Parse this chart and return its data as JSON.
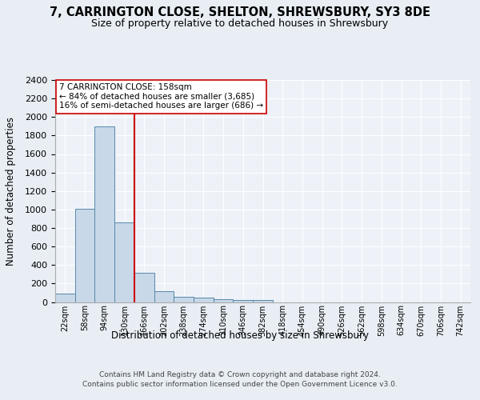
{
  "title": "7, CARRINGTON CLOSE, SHELTON, SHREWSBURY, SY3 8DE",
  "subtitle": "Size of property relative to detached houses in Shrewsbury",
  "xlabel": "Distribution of detached houses by size in Shrewsbury",
  "ylabel": "Number of detached properties",
  "bin_labels": [
    "22sqm",
    "58sqm",
    "94sqm",
    "130sqm",
    "166sqm",
    "202sqm",
    "238sqm",
    "274sqm",
    "310sqm",
    "346sqm",
    "382sqm",
    "418sqm",
    "454sqm",
    "490sqm",
    "526sqm",
    "562sqm",
    "598sqm",
    "634sqm",
    "670sqm",
    "706sqm",
    "742sqm"
  ],
  "bar_values": [
    90,
    1010,
    1900,
    860,
    320,
    115,
    55,
    47,
    30,
    20,
    20,
    0,
    0,
    0,
    0,
    0,
    0,
    0,
    0,
    0,
    0
  ],
  "bar_color": "#c8d8e8",
  "bar_edge_color": "#5588aa",
  "vline_color": "#cc0000",
  "annotation_text": "7 CARRINGTON CLOSE: 158sqm\n← 84% of detached houses are smaller (3,685)\n16% of semi-detached houses are larger (686) →",
  "annotation_box_color": "#ffffff",
  "annotation_box_edge": "#cc0000",
  "ylim": [
    0,
    2400
  ],
  "yticks": [
    0,
    200,
    400,
    600,
    800,
    1000,
    1200,
    1400,
    1600,
    1800,
    2000,
    2200,
    2400
  ],
  "footer_line1": "Contains HM Land Registry data © Crown copyright and database right 2024.",
  "footer_line2": "Contains public sector information licensed under the Open Government Licence v3.0.",
  "background_color": "#e8eef4",
  "plot_bg_color": "#eef2f8"
}
